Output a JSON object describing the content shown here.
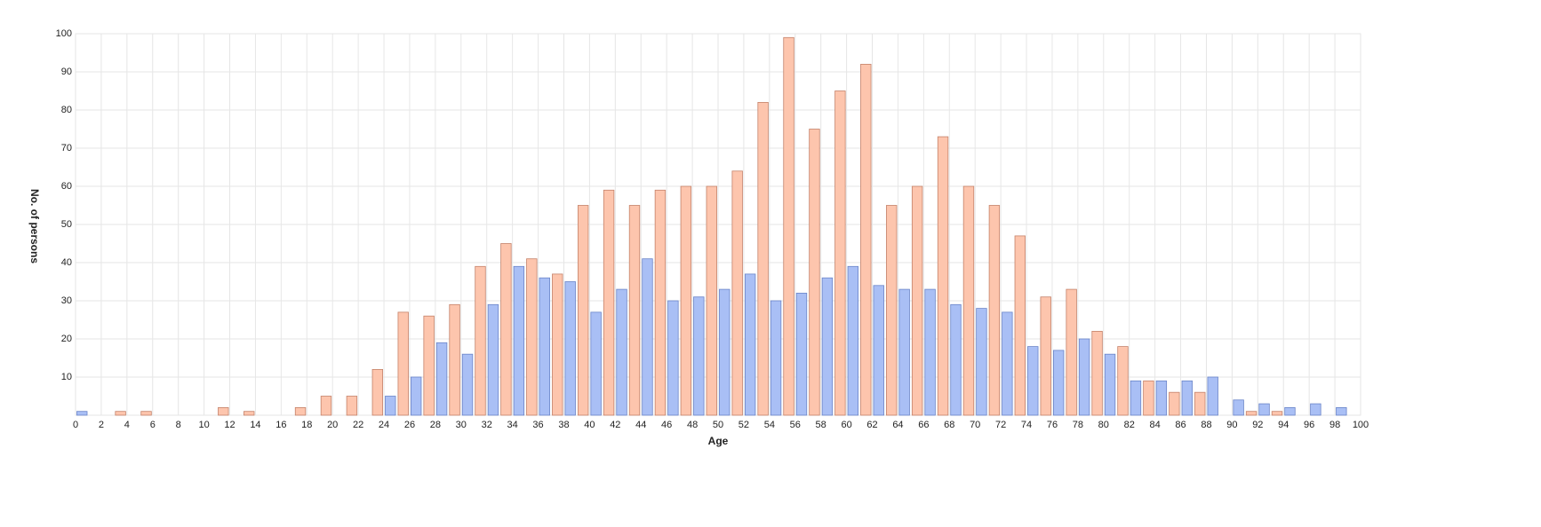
{
  "chart_data": {
    "type": "bar",
    "x_label": "Age",
    "y_label": "No. of persons",
    "x": [
      0,
      1,
      2,
      3,
      4,
      5,
      6,
      7,
      8,
      9,
      10,
      11,
      12,
      13,
      14,
      15,
      16,
      17,
      18,
      19,
      20,
      21,
      22,
      23,
      24,
      25,
      26,
      27,
      28,
      29,
      30,
      31,
      32,
      33,
      34,
      35,
      36,
      37,
      38,
      39,
      40,
      41,
      42,
      43,
      44,
      45,
      46,
      47,
      48,
      49,
      50,
      51,
      52,
      53,
      54,
      55,
      56,
      57,
      58,
      59,
      60,
      61,
      62,
      63,
      64,
      65,
      66,
      67,
      68,
      69,
      70,
      71,
      72,
      73,
      74,
      75,
      76,
      77,
      78,
      79,
      80,
      81,
      82,
      83,
      84,
      85,
      86,
      87,
      88,
      89,
      90,
      91,
      92,
      93,
      94,
      95,
      96,
      97,
      98,
      99
    ],
    "series": [
      {
        "color": "#a9bff5",
        "values": [
          1,
          null,
          0,
          null,
          0,
          null,
          0,
          null,
          0,
          null,
          0,
          null,
          0,
          null,
          0,
          null,
          0,
          null,
          0,
          null,
          0,
          null,
          0,
          null,
          5,
          null,
          10,
          null,
          19,
          null,
          16,
          null,
          29,
          null,
          39,
          null,
          36,
          null,
          35,
          null,
          27,
          null,
          33,
          null,
          41,
          null,
          30,
          null,
          31,
          null,
          33,
          null,
          37,
          null,
          30,
          null,
          32,
          null,
          36,
          null,
          39,
          null,
          34,
          null,
          33,
          null,
          33,
          null,
          29,
          null,
          28,
          null,
          27,
          null,
          18,
          null,
          17,
          null,
          20,
          null,
          16,
          null,
          9,
          null,
          9,
          null,
          9,
          null,
          10,
          null,
          4,
          null,
          3,
          null,
          2,
          null,
          3,
          null,
          2,
          null
        ]
      },
      {
        "color": "#fdc5ad",
        "values": [
          null,
          0,
          null,
          1,
          null,
          1,
          null,
          0,
          null,
          0,
          null,
          2,
          null,
          1,
          null,
          0,
          null,
          2,
          null,
          5,
          null,
          5,
          null,
          12,
          null,
          27,
          null,
          26,
          null,
          29,
          null,
          39,
          null,
          45,
          null,
          41,
          null,
          37,
          null,
          55,
          null,
          59,
          null,
          55,
          null,
          59,
          null,
          60,
          null,
          60,
          null,
          64,
          null,
          82,
          null,
          99,
          null,
          75,
          null,
          85,
          null,
          92,
          null,
          55,
          null,
          60,
          null,
          73,
          null,
          60,
          null,
          55,
          null,
          47,
          null,
          31,
          null,
          33,
          null,
          22,
          null,
          18,
          null,
          9,
          null,
          6,
          null,
          6,
          null,
          0,
          null,
          1,
          null,
          1,
          null,
          0,
          null,
          0,
          null,
          0
        ]
      }
    ],
    "xlim": [
      0,
      100
    ],
    "xticks": [
      0,
      2,
      4,
      6,
      8,
      10,
      12,
      14,
      16,
      18,
      20,
      22,
      24,
      26,
      28,
      30,
      32,
      34,
      36,
      38,
      40,
      42,
      44,
      46,
      48,
      50,
      52,
      54,
      56,
      58,
      60,
      62,
      64,
      66,
      68,
      70,
      72,
      74,
      76,
      78,
      80,
      82,
      84,
      86,
      88,
      90,
      92,
      94,
      96,
      98,
      100
    ],
    "ylim": [
      0,
      100
    ],
    "yticks": [
      10,
      20,
      30,
      40,
      50,
      60,
      70,
      80,
      90,
      100
    ],
    "grid": true
  }
}
